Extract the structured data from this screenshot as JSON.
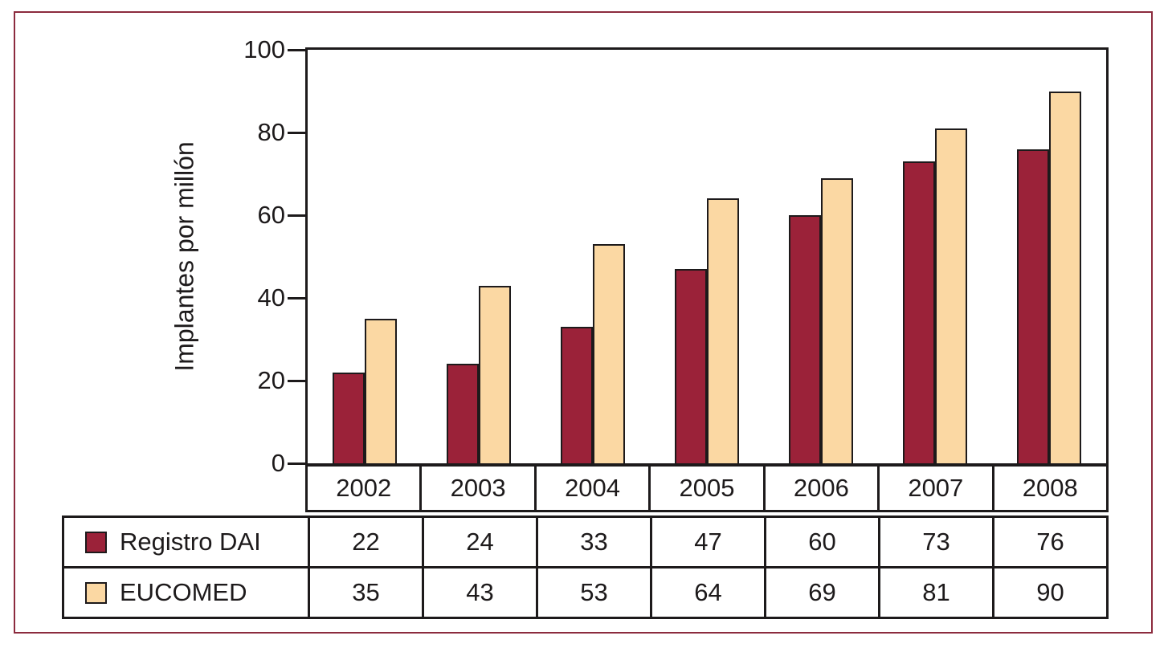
{
  "figure": {
    "frame_border_color": "#8C2B3E",
    "axis_line_color": "#1d1a1b",
    "background_color": "#ffffff"
  },
  "chart_data": {
    "type": "bar",
    "title": "",
    "xlabel": "",
    "ylabel": "Implantes por millón",
    "categories": [
      "2002",
      "2003",
      "2004",
      "2005",
      "2006",
      "2007",
      "2008"
    ],
    "series": [
      {
        "name": "Registro DAI",
        "color": "#9B2239",
        "values": [
          22,
          24,
          33,
          47,
          60,
          73,
          76
        ]
      },
      {
        "name": "EUCOMED",
        "color": "#FBD8A3",
        "values": [
          35,
          43,
          53,
          64,
          69,
          81,
          90
        ]
      }
    ],
    "ylim": [
      0,
      100
    ],
    "y_ticks": [
      0,
      20,
      40,
      60,
      80,
      100
    ],
    "grid": false,
    "legend_position": "table-below"
  }
}
